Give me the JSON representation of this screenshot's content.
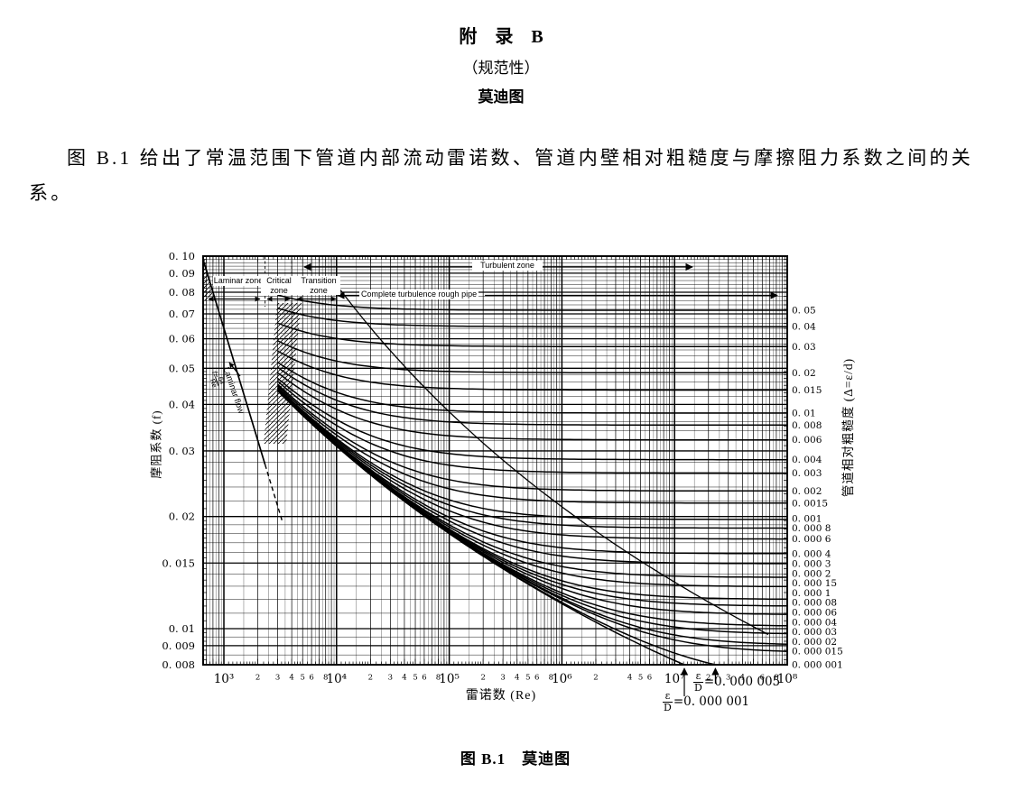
{
  "page": {
    "appendix_title": "附　录　B",
    "normative_label": "（规范性）",
    "section_title": "莫迪图",
    "intro_paragraph": "图 B.1 给出了常温范围下管道内部流动雷诺数、管道内壁相对粗糙度与摩擦阻力系数之间的关系。",
    "figure_caption": "图 B.1　莫迪图"
  },
  "chart_data": {
    "type": "line",
    "title": "莫迪图 (Moody chart)",
    "x_axis": {
      "label": "雷诺数 (Re)",
      "scale": "log",
      "min": 643,
      "max": 100000000,
      "major_ticks": [
        {
          "label": "10³",
          "value": 1000
        },
        {
          "label": "10⁴",
          "value": 10000
        },
        {
          "label": "10⁵",
          "value": 100000
        },
        {
          "label": "10⁶",
          "value": 1000000
        },
        {
          "label": "10⁷",
          "value": 10000000
        },
        {
          "label": "10⁸",
          "value": 100000000
        }
      ],
      "minor_tick_labels": [
        {
          "exp": 3,
          "mantissas": [
            2,
            3,
            4,
            5,
            6,
            8
          ]
        },
        {
          "exp": 4,
          "mantissas": [
            2,
            3,
            4,
            5,
            6,
            8
          ]
        },
        {
          "exp": 5,
          "mantissas": [
            2,
            3,
            4,
            5,
            6,
            8
          ]
        },
        {
          "exp": 6,
          "mantissas": [
            2,
            4,
            5,
            6
          ]
        },
        {
          "exp": 7,
          "mantissas": [
            2,
            3,
            4,
            6,
            8
          ]
        }
      ]
    },
    "y_axis_left": {
      "label": "摩阻系数 (f)",
      "scale": "log",
      "min": 0.008,
      "max": 0.1,
      "ticks": [
        {
          "label": "0. 10",
          "value": 0.1
        },
        {
          "label": "0. 09",
          "value": 0.09
        },
        {
          "label": "0. 08",
          "value": 0.08
        },
        {
          "label": "0. 07",
          "value": 0.07
        },
        {
          "label": "0. 06",
          "value": 0.06
        },
        {
          "label": "0. 05",
          "value": 0.05
        },
        {
          "label": "0. 04",
          "value": 0.04
        },
        {
          "label": "0. 03",
          "value": 0.03
        },
        {
          "label": "0. 02",
          "value": 0.02
        },
        {
          "label": "0. 015",
          "value": 0.015
        },
        {
          "label": "0. 01",
          "value": 0.01
        },
        {
          "label": "0. 009",
          "value": 0.009
        },
        {
          "label": "0. 008",
          "value": 0.008
        }
      ]
    },
    "y_axis_right": {
      "label": "管道相对粗糙度 (Δ=ε/d)",
      "ticks": [
        {
          "label": "0. 05",
          "value": 0.05
        },
        {
          "label": "0. 04",
          "value": 0.04
        },
        {
          "label": "0. 03",
          "value": 0.03
        },
        {
          "label": "0. 02",
          "value": 0.02
        },
        {
          "label": "0. 015",
          "value": 0.015
        },
        {
          "label": "0. 01",
          "value": 0.01
        },
        {
          "label": "0. 008",
          "value": 0.008
        },
        {
          "label": "0. 006",
          "value": 0.006
        },
        {
          "label": "0. 004",
          "value": 0.004
        },
        {
          "label": "0. 003",
          "value": 0.003
        },
        {
          "label": "0. 002",
          "value": 0.002
        },
        {
          "label": "0. 0015",
          "value": 0.0015
        },
        {
          "label": "0. 001",
          "value": 0.001
        },
        {
          "label": "0. 000 8",
          "value": 0.0008
        },
        {
          "label": "0. 000 6",
          "value": 0.0006
        },
        {
          "label": "0. 000 4",
          "value": 0.0004
        },
        {
          "label": "0. 000 3",
          "value": 0.0003
        },
        {
          "label": "0. 000 2",
          "value": 0.0002
        },
        {
          "label": "0. 000 15",
          "value": 0.00015
        },
        {
          "label": "0. 000 1",
          "value": 0.0001
        },
        {
          "label": "0. 000 08",
          "value": 8e-05
        },
        {
          "label": "0. 000 06",
          "value": 6e-05
        },
        {
          "label": "0. 000 04",
          "value": 4e-05
        },
        {
          "label": "0. 000 03",
          "value": 3e-05
        },
        {
          "label": "0. 000 02",
          "value": 2e-05
        },
        {
          "label": "0. 000 015",
          "value": 1.5e-05
        },
        {
          "label": "0. 000 001",
          "value": 1e-06
        }
      ]
    },
    "series": {
      "laminar": {
        "equation": "f = 64/Re",
        "re_start": 643,
        "re_solid_end": 2320,
        "re_dashed_end": 3300
      },
      "colebrook_roughness_values": [
        0.05,
        0.04,
        0.03,
        0.02,
        0.015,
        0.01,
        0.008,
        0.006,
        0.004,
        0.003,
        0.002,
        0.0015,
        0.001,
        0.0008,
        0.0006,
        0.0004,
        0.0003,
        0.0002,
        0.00015,
        0.0001,
        8e-05,
        6e-05,
        4e-05,
        3e-05,
        2e-05,
        1.5e-05,
        5e-06,
        1e-06
      ],
      "complete_turbulence_boundary": {
        "rr_start": 0.065,
        "rr_end": 3e-05
      },
      "critical_zone_re": [
        2320,
        4000
      ]
    },
    "zone_labels": {
      "laminar": "Laminar zone",
      "critical": "Critical zone",
      "transition": "Transition zone",
      "turbulent": "Turbulent zone",
      "complete": "Complete turbulence rough pipe",
      "laminar_flow": "Laminar flow",
      "laminar_eq_lhs": "f=",
      "laminar_eq_num": "64",
      "laminar_eq_den": "Re"
    },
    "annotations": [
      {
        "numerator": "ε",
        "denominator": "D",
        "rhs": "=0. 000 001",
        "roughness": 1e-06
      },
      {
        "numerator": "ε",
        "denominator": "D",
        "rhs": "=0. 000 005",
        "roughness": 5e-06
      }
    ],
    "colors": {
      "ink": "#000000",
      "paper": "#ffffff"
    },
    "grid": "on",
    "legend": "right-axis-labels"
  }
}
